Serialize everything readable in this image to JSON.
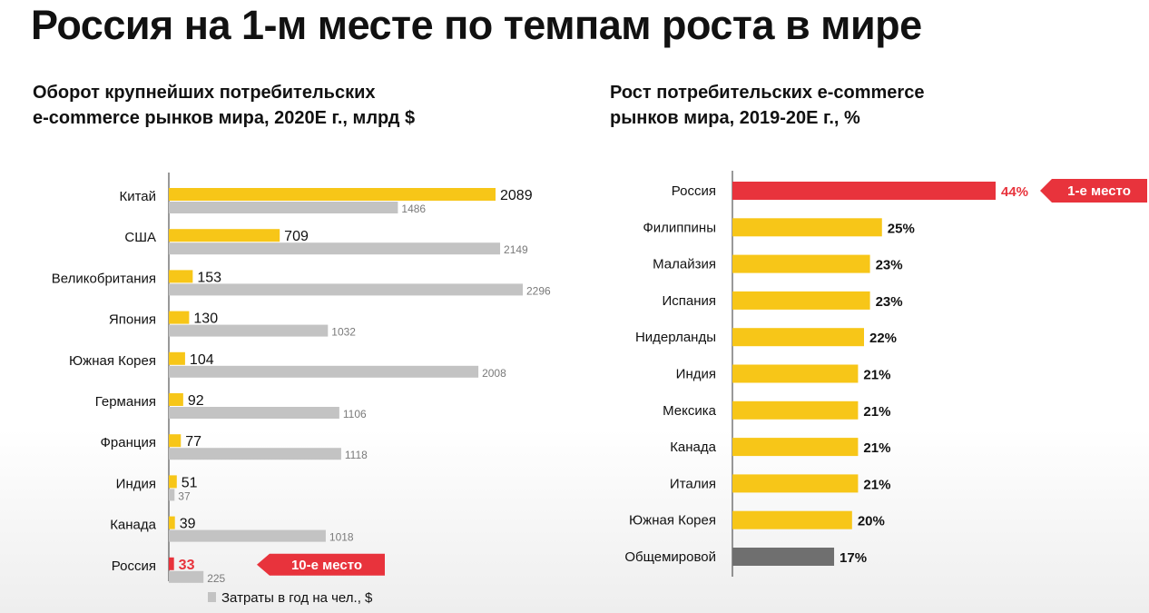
{
  "page_title": "Россия на 1-м месте по темпам роста в мире",
  "colors": {
    "yellow": "#f7c618",
    "gray": "#c3c3c3",
    "red": "#e8333c",
    "dark_gray": "#6f6f6f",
    "text": "#111111"
  },
  "chart_data": [
    {
      "type": "bar",
      "orientation": "horizontal",
      "title_lines": [
        "Оборот крупнейших потребительских",
        "e-commerce рынков мира, 2020E г., млрд $"
      ],
      "categories": [
        "Китай",
        "США",
        "Великобритания",
        "Япония",
        "Южная Корея",
        "Германия",
        "Франция",
        "Индия",
        "Канада",
        "Россия"
      ],
      "series": [
        {
          "name": "Оборот, млрд $",
          "values": [
            2089,
            709,
            153,
            130,
            104,
            92,
            77,
            51,
            39,
            33
          ]
        },
        {
          "name": "Затраты в год на чел., $",
          "values": [
            1486,
            2149,
            2296,
            1032,
            2008,
            1106,
            1118,
            37,
            1018,
            225
          ]
        }
      ],
      "highlight_category": "Россия",
      "highlight_label": "10-е место",
      "legend": "Затраты в год на чел., $",
      "legend_position": "bottom"
    },
    {
      "type": "bar",
      "orientation": "horizontal",
      "title_lines": [
        "Рост потребительских e-commerce",
        "рынков мира, 2019-20E г., %"
      ],
      "categories": [
        "Россия",
        "Филиппины",
        "Малайзия",
        "Испания",
        "Нидерланды",
        "Индия",
        "Мексика",
        "Канада",
        "Италия",
        "Южная Корея",
        "Общемировой"
      ],
      "values": [
        44,
        25,
        23,
        23,
        22,
        21,
        21,
        21,
        21,
        20,
        17
      ],
      "value_labels": [
        "44%",
        "25%",
        "23%",
        "23%",
        "22%",
        "21%",
        "21%",
        "21%",
        "21%",
        "20%",
        "17%"
      ],
      "highlight_category": "Россия",
      "highlight_label": "1-е место",
      "total_category": "Общемировой"
    }
  ]
}
